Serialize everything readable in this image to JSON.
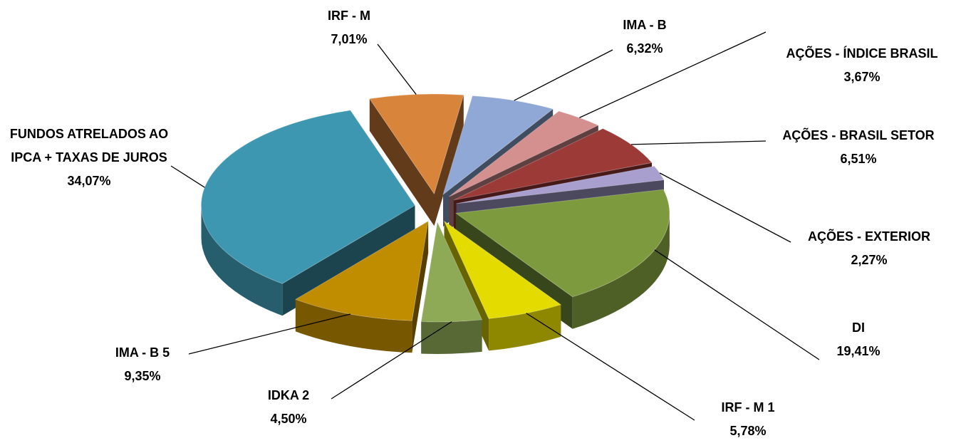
{
  "chart_data": {
    "type": "pie",
    "categories": [
      "IRF - M",
      "IMA - B",
      "AÇÕES - ÍNDICE BRASIL",
      "AÇÕES - BRASIL SETOR",
      "AÇÕES - EXTERIOR",
      "DI",
      "IRF - M 1",
      "IDKA 2",
      "IMA - B 5",
      "FUNDOS ATRELADOS AO IPCA + TAXAS DE JUROS"
    ],
    "values": [
      7.01,
      6.32,
      3.67,
      6.51,
      2.27,
      19.41,
      5.78,
      4.5,
      9.35,
      34.07
    ],
    "value_labels": [
      "7,01%",
      "6,32%",
      "3,67%",
      "6,51%",
      "2,27%",
      "19,41%",
      "5,78%",
      "4,50%",
      "9,35%",
      "34,07%"
    ],
    "colors": [
      "#d9843b",
      "#8fa8d6",
      "#d48f8f",
      "#9b3a37",
      "#a99fcf",
      "#7d9b3e",
      "#e4dc00",
      "#8faa56",
      "#c08c00",
      "#3e97b0"
    ]
  }
}
